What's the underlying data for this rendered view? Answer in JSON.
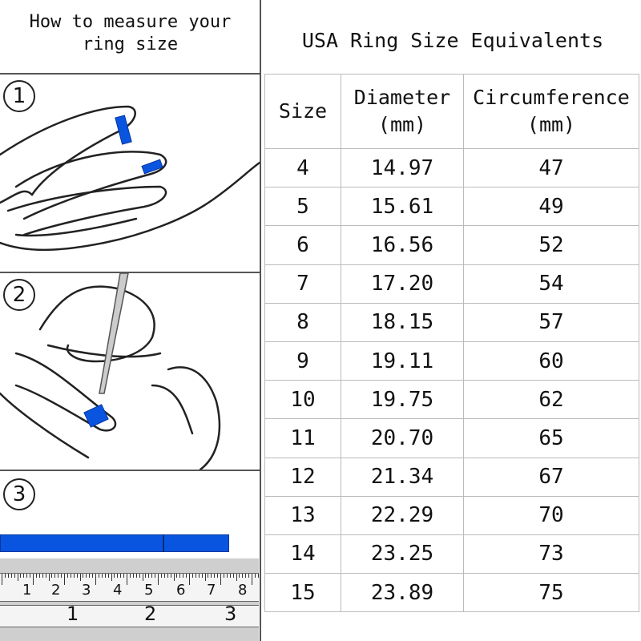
{
  "left_panel": {
    "title_line1": "How to measure your",
    "title_line2": "ring size",
    "steps": [
      "1",
      "2",
      "3"
    ],
    "tape_color": "#0a55e0",
    "ruler": {
      "cm_labels": [
        "1",
        "2",
        "3",
        "4",
        "5",
        "6",
        "7",
        "8"
      ],
      "inch_labels": [
        "1",
        "2",
        "3"
      ]
    }
  },
  "table": {
    "title": "USA Ring Size Equivalents",
    "headers": {
      "size": "Size",
      "diameter_line1": "Diameter",
      "diameter_line2": "(mm)",
      "circ_line1": "Circumference",
      "circ_line2": "(mm)"
    },
    "rows": [
      {
        "size": "4",
        "diameter": "14.97",
        "circumference": "47"
      },
      {
        "size": "5",
        "diameter": "15.61",
        "circumference": "49"
      },
      {
        "size": "6",
        "diameter": "16.56",
        "circumference": "52"
      },
      {
        "size": "7",
        "diameter": "17.20",
        "circumference": "54"
      },
      {
        "size": "8",
        "diameter": "18.15",
        "circumference": "57"
      },
      {
        "size": "9",
        "diameter": "19.11",
        "circumference": "60"
      },
      {
        "size": "10",
        "diameter": "19.75",
        "circumference": "62"
      },
      {
        "size": "11",
        "diameter": "20.70",
        "circumference": "65"
      },
      {
        "size": "12",
        "diameter": "21.34",
        "circumference": "67"
      },
      {
        "size": "13",
        "diameter": "22.29",
        "circumference": "70"
      },
      {
        "size": "14",
        "diameter": "23.25",
        "circumference": "73"
      },
      {
        "size": "15",
        "diameter": "23.89",
        "circumference": "75"
      }
    ]
  }
}
